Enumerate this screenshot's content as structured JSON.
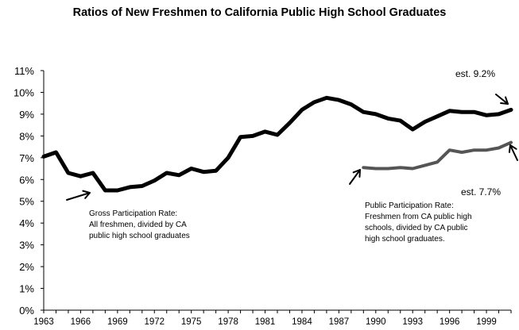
{
  "chart_data": {
    "type": "line",
    "title": "Ratios of New Freshmen to California Public High School Graduates",
    "xlabel": "",
    "ylabel": "",
    "x_tick_labels": [
      "1963",
      "1966",
      "1969",
      "1972",
      "1975",
      "1978",
      "1981",
      "1984",
      "1987",
      "1990",
      "1993",
      "1996",
      "1999"
    ],
    "y_tick_labels": [
      "0%",
      "1%",
      "2%",
      "3%",
      "4%",
      "5%",
      "6%",
      "7%",
      "8%",
      "9%",
      "10%",
      "11%"
    ],
    "xlim": [
      1963,
      2001
    ],
    "ylim": [
      0,
      11
    ],
    "grid": false,
    "series": [
      {
        "key": "gross",
        "color": "#000000",
        "x": [
          1963,
          1964,
          1965,
          1966,
          1967,
          1968,
          1969,
          1970,
          1971,
          1972,
          1973,
          1974,
          1975,
          1976,
          1977,
          1978,
          1979,
          1980,
          1981,
          1982,
          1983,
          1984,
          1985,
          1986,
          1987,
          1988,
          1989,
          1990,
          1991,
          1992,
          1993,
          1994,
          1995,
          1996,
          1997,
          1998,
          1999,
          2000,
          2001
        ],
        "values": [
          7.05,
          7.25,
          6.3,
          6.15,
          6.3,
          5.5,
          5.5,
          5.65,
          5.7,
          5.95,
          6.3,
          6.2,
          6.5,
          6.35,
          6.4,
          7.0,
          7.95,
          8.0,
          8.2,
          8.05,
          8.6,
          9.2,
          9.55,
          9.75,
          9.65,
          9.45,
          9.1,
          9.0,
          8.8,
          8.7,
          8.3,
          8.65,
          8.9,
          9.15,
          9.1,
          9.1,
          8.95,
          9.0,
          9.2
        ]
      },
      {
        "key": "public",
        "color": "#555555",
        "x": [
          1989,
          1990,
          1991,
          1992,
          1993,
          1994,
          1995,
          1996,
          1997,
          1998,
          1999,
          2000,
          2001
        ],
        "values": [
          6.55,
          6.5,
          6.5,
          6.55,
          6.5,
          6.65,
          6.8,
          7.35,
          7.25,
          7.35,
          7.35,
          7.45,
          7.7
        ]
      }
    ],
    "annotations": {
      "gross_label": [
        "Gross Participation Rate:",
        "All freshmen, divided by CA",
        "public high school graduates"
      ],
      "public_label": [
        "Public Participation Rate:",
        "Freshmen from CA public high",
        "schools, divided by CA public",
        "high school graduates."
      ],
      "est_gross": "est. 9.2%",
      "est_public": "est. 7.7%"
    }
  }
}
